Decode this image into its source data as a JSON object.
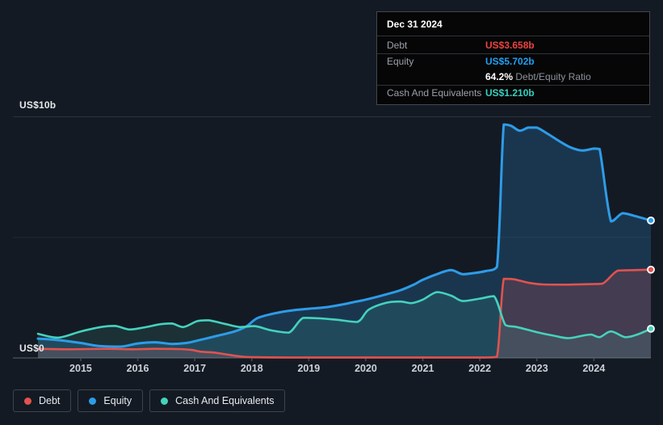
{
  "colors": {
    "background": "#141a23",
    "debt": "#e2524e",
    "equity": "#2d9ce8",
    "cash": "#45d2bd",
    "debt_fill": "rgba(220,80,85,0.22)",
    "equity_fill": "rgba(45,140,210,0.25)",
    "cash_fill": "rgba(80,210,185,0.13)",
    "grid_top": "#2e333a",
    "grid_mid": "#23282e",
    "axis_line": "#454b53",
    "debt_value_text": "#ea4440",
    "equity_value_text": "#219ff0",
    "cash_value_text": "#36d1c0"
  },
  "y_axis": {
    "top_label": "US$10b",
    "bottom_label": "US$0"
  },
  "tooltip": {
    "date": "Dec 31 2024",
    "debt_label": "Debt",
    "debt_value": "US$3.658b",
    "equity_label": "Equity",
    "equity_value": "US$5.702b",
    "ratio_value": "64.2%",
    "ratio_label": "Debt/Equity Ratio",
    "cash_label": "Cash And Equivalents",
    "cash_value": "US$1.210b"
  },
  "legend": [
    {
      "id": "debt",
      "label": "Debt",
      "color": "#e2524e"
    },
    {
      "id": "equity",
      "label": "Equity",
      "color": "#2d9ce8"
    },
    {
      "id": "cash",
      "label": "Cash And Equivalents",
      "color": "#45d2bd"
    }
  ],
  "chart_data": {
    "type": "area",
    "x_range": [
      2014.25,
      2025.0
    ],
    "y_range": [
      0,
      10
    ],
    "y_unit": "US$ billions",
    "x_ticks": [
      "2015",
      "2016",
      "2017",
      "2018",
      "2019",
      "2020",
      "2021",
      "2022",
      "2023",
      "2024"
    ],
    "grid": "horizontal",
    "legend_position": "bottom-left",
    "series": [
      {
        "name": "Equity",
        "color": "#2d9ce8",
        "fill": "rgba(45,140,210,0.25)",
        "width": 3,
        "points": [
          [
            2014.25,
            0.8
          ],
          [
            2014.6,
            0.74
          ],
          [
            2015.0,
            0.62
          ],
          [
            2015.3,
            0.5
          ],
          [
            2015.7,
            0.47
          ],
          [
            2016.0,
            0.6
          ],
          [
            2016.3,
            0.65
          ],
          [
            2016.6,
            0.58
          ],
          [
            2016.85,
            0.62
          ],
          [
            2017.1,
            0.75
          ],
          [
            2017.4,
            0.92
          ],
          [
            2017.7,
            1.1
          ],
          [
            2017.9,
            1.3
          ],
          [
            2018.1,
            1.65
          ],
          [
            2018.4,
            1.85
          ],
          [
            2018.7,
            1.97
          ],
          [
            2019.0,
            2.04
          ],
          [
            2019.3,
            2.1
          ],
          [
            2019.6,
            2.22
          ],
          [
            2019.8,
            2.32
          ],
          [
            2020.0,
            2.42
          ],
          [
            2020.3,
            2.6
          ],
          [
            2020.6,
            2.8
          ],
          [
            2020.85,
            3.05
          ],
          [
            2021.0,
            3.24
          ],
          [
            2021.3,
            3.52
          ],
          [
            2021.5,
            3.64
          ],
          [
            2021.7,
            3.47
          ],
          [
            2021.9,
            3.52
          ],
          [
            2022.1,
            3.6
          ],
          [
            2022.3,
            3.78
          ],
          [
            2022.42,
            9.68
          ],
          [
            2022.55,
            9.62
          ],
          [
            2022.7,
            9.42
          ],
          [
            2022.85,
            9.55
          ],
          [
            2023.0,
            9.55
          ],
          [
            2023.2,
            9.28
          ],
          [
            2023.4,
            8.98
          ],
          [
            2023.6,
            8.72
          ],
          [
            2023.8,
            8.6
          ],
          [
            2024.0,
            8.68
          ],
          [
            2024.1,
            8.66
          ],
          [
            2024.3,
            5.66
          ],
          [
            2024.5,
            6.0
          ],
          [
            2024.7,
            5.9
          ],
          [
            2025.0,
            5.7
          ]
        ]
      },
      {
        "name": "Debt",
        "color": "#e2524e",
        "fill": "rgba(220,80,85,0.22)",
        "width": 2.6,
        "points": [
          [
            2014.25,
            0.38
          ],
          [
            2014.7,
            0.36
          ],
          [
            2015.1,
            0.37
          ],
          [
            2015.5,
            0.38
          ],
          [
            2015.9,
            0.36
          ],
          [
            2016.3,
            0.38
          ],
          [
            2016.7,
            0.37
          ],
          [
            2016.95,
            0.33
          ],
          [
            2017.1,
            0.26
          ],
          [
            2017.35,
            0.22
          ],
          [
            2017.6,
            0.13
          ],
          [
            2017.85,
            0.05
          ],
          [
            2018.1,
            0.03
          ],
          [
            2018.6,
            0.02
          ],
          [
            2019.5,
            0.02
          ],
          [
            2020.5,
            0.02
          ],
          [
            2021.5,
            0.02
          ],
          [
            2022.1,
            0.02
          ],
          [
            2022.3,
            0.05
          ],
          [
            2022.42,
            3.28
          ],
          [
            2022.6,
            3.26
          ],
          [
            2022.85,
            3.12
          ],
          [
            2023.1,
            3.05
          ],
          [
            2023.5,
            3.04
          ],
          [
            2023.9,
            3.06
          ],
          [
            2024.15,
            3.08
          ],
          [
            2024.42,
            3.62
          ],
          [
            2024.7,
            3.64
          ],
          [
            2025.0,
            3.66
          ]
        ]
      },
      {
        "name": "Cash And Equivalents",
        "color": "#45d2bd",
        "fill": "rgba(80,210,185,0.13)",
        "width": 2.6,
        "points": [
          [
            2014.25,
            1.0
          ],
          [
            2014.6,
            0.84
          ],
          [
            2015.0,
            1.1
          ],
          [
            2015.35,
            1.28
          ],
          [
            2015.6,
            1.33
          ],
          [
            2015.85,
            1.18
          ],
          [
            2016.1,
            1.26
          ],
          [
            2016.4,
            1.4
          ],
          [
            2016.6,
            1.43
          ],
          [
            2016.8,
            1.28
          ],
          [
            2017.05,
            1.53
          ],
          [
            2017.25,
            1.56
          ],
          [
            2017.55,
            1.4
          ],
          [
            2017.8,
            1.28
          ],
          [
            2018.05,
            1.32
          ],
          [
            2018.35,
            1.14
          ],
          [
            2018.65,
            1.05
          ],
          [
            2018.9,
            1.66
          ],
          [
            2019.2,
            1.64
          ],
          [
            2019.5,
            1.58
          ],
          [
            2019.85,
            1.49
          ],
          [
            2020.05,
            2.0
          ],
          [
            2020.35,
            2.28
          ],
          [
            2020.6,
            2.34
          ],
          [
            2020.8,
            2.27
          ],
          [
            2021.0,
            2.42
          ],
          [
            2021.25,
            2.73
          ],
          [
            2021.5,
            2.58
          ],
          [
            2021.7,
            2.36
          ],
          [
            2022.0,
            2.46
          ],
          [
            2022.25,
            2.56
          ],
          [
            2022.45,
            1.36
          ],
          [
            2022.65,
            1.28
          ],
          [
            2023.0,
            1.07
          ],
          [
            2023.3,
            0.92
          ],
          [
            2023.55,
            0.82
          ],
          [
            2023.8,
            0.92
          ],
          [
            2023.95,
            0.97
          ],
          [
            2024.1,
            0.86
          ],
          [
            2024.3,
            1.1
          ],
          [
            2024.55,
            0.86
          ],
          [
            2024.75,
            0.96
          ],
          [
            2025.0,
            1.21
          ]
        ]
      }
    ]
  }
}
